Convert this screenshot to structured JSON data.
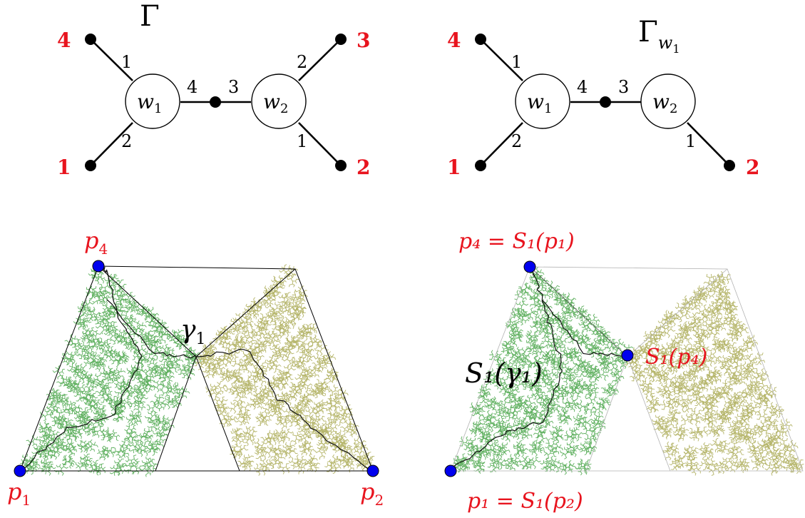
{
  "graph_left": {
    "title": "Γ",
    "center_vertex": "w",
    "center_vertex_sub_left": "1",
    "center_vertex_sub_right": "2",
    "leaves": {
      "top_left": "4",
      "bottom_left": "1",
      "top_right": "3",
      "bottom_right": "2"
    },
    "edge_labels": {
      "top_left": "1",
      "bottom_left": "2",
      "middle_left": "4",
      "middle_right": "3",
      "top_right": "2",
      "bottom_right": "1"
    }
  },
  "graph_right": {
    "title": "Γ",
    "title_sub": "w",
    "title_sub_sub": "1",
    "center_vertex": "w",
    "center_vertex_sub_left": "1",
    "center_vertex_sub_right": "2",
    "leaves": {
      "top_left": "4",
      "bottom_left": "1",
      "bottom_right": "2"
    },
    "edge_labels": {
      "top_left": "1",
      "bottom_left": "2",
      "middle_left": "4",
      "middle_right": "3",
      "bottom_right": "1"
    }
  },
  "fractal_left": {
    "p4": {
      "letter": "p",
      "sub": "4"
    },
    "p1": {
      "letter": "p",
      "sub": "1"
    },
    "p2": {
      "letter": "p",
      "sub": "2"
    },
    "gamma": {
      "letter": "γ",
      "sub": "1"
    }
  },
  "fractal_right": {
    "top_label": "p₄ = S₁(p₁)",
    "bottom_label": "p₁ = S₁(p₂)",
    "side_label": "S₁(p₄)",
    "curve_label": "S₁(γ₁)"
  },
  "colors": {
    "label_red": "#e8141e",
    "point_blue": "#0000ee",
    "fractal_green": "#5fb05f",
    "fractal_olive": "#b5b56a",
    "curve": "#111111"
  }
}
